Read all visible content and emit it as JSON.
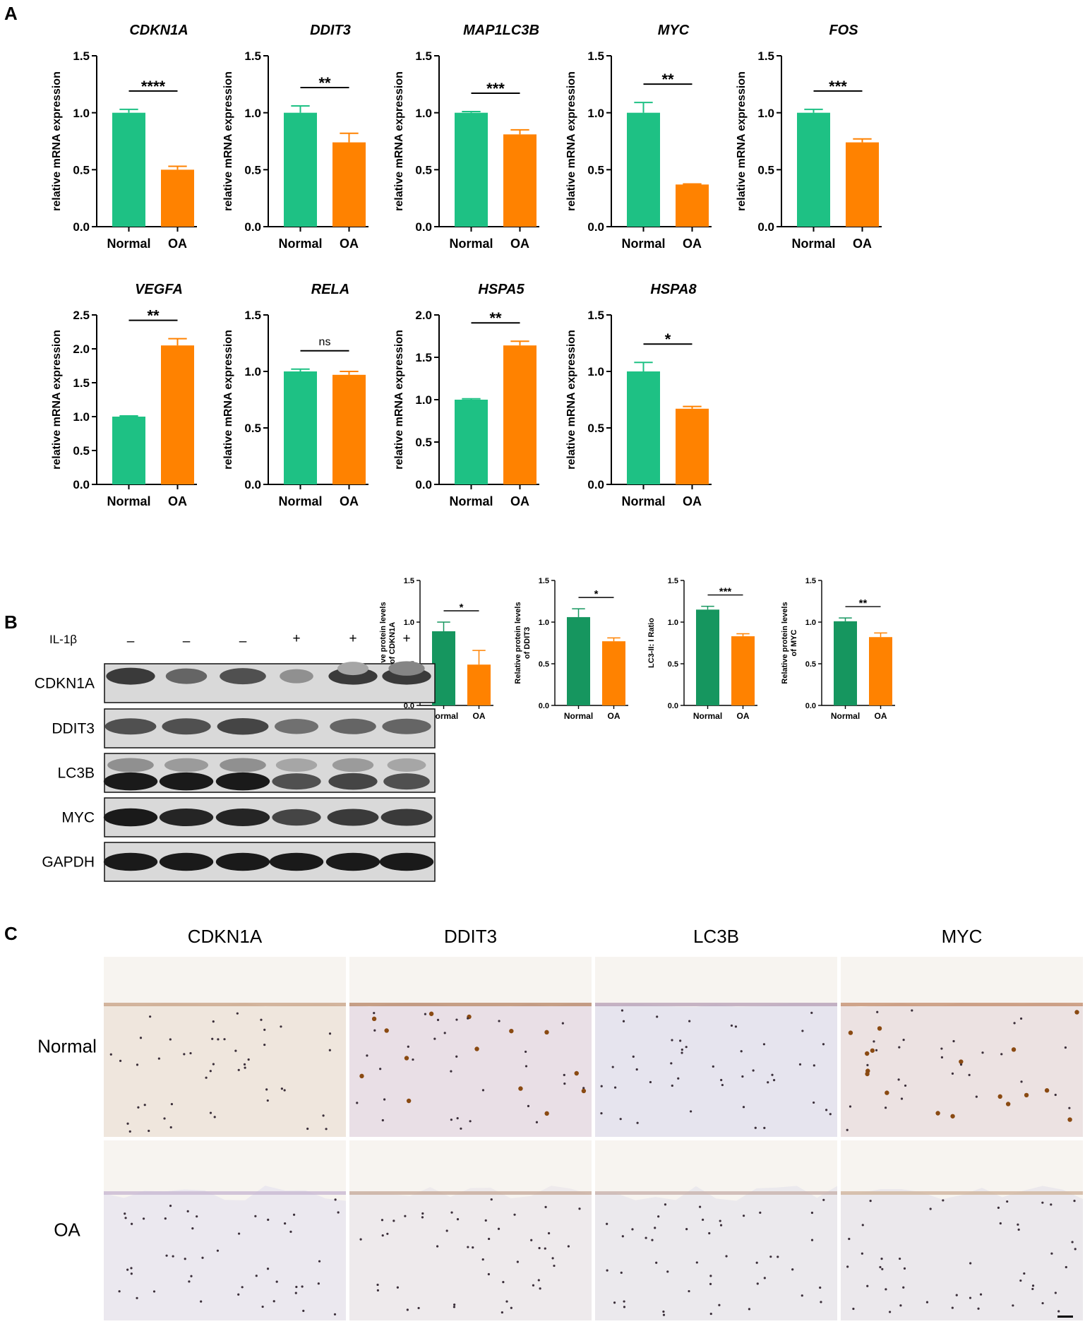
{
  "panel_labels": {
    "a": "A",
    "b": "B",
    "c": "C"
  },
  "colors": {
    "normal": "#1ec184",
    "oa": "#ff8200",
    "normal_b": "#16965f",
    "axis": "#000000"
  },
  "chart_data": [
    {
      "type": "bar",
      "title": "CDKN1A",
      "ylabel": "relative mRNA expression",
      "categories": [
        "Normal",
        "OA"
      ],
      "values": [
        1.0,
        0.5
      ],
      "errors": [
        0.03,
        0.03
      ],
      "ylim": [
        0,
        1.5
      ],
      "yticks": [
        "0.0",
        "0.5",
        "1.0",
        "1.5"
      ],
      "significance": "****"
    },
    {
      "type": "bar",
      "title": "DDIT3",
      "ylabel": "relative mRNA expression",
      "categories": [
        "Normal",
        "OA"
      ],
      "values": [
        1.0,
        0.74
      ],
      "errors": [
        0.06,
        0.08
      ],
      "ylim": [
        0,
        1.5
      ],
      "yticks": [
        "0.0",
        "0.5",
        "1.0",
        "1.5"
      ],
      "significance": "**"
    },
    {
      "type": "bar",
      "title": "MAP1LC3B",
      "ylabel": "relative mRNA expression",
      "categories": [
        "Normal",
        "OA"
      ],
      "values": [
        1.0,
        0.81
      ],
      "errors": [
        0.01,
        0.04
      ],
      "ylim": [
        0,
        1.5
      ],
      "yticks": [
        "0.0",
        "0.5",
        "1.0",
        "1.5"
      ],
      "significance": "***"
    },
    {
      "type": "bar",
      "title": "MYC",
      "ylabel": "relative mRNA expression",
      "categories": [
        "Normal",
        "OA"
      ],
      "values": [
        1.0,
        0.37
      ],
      "errors": [
        0.09,
        0.005
      ],
      "ylim": [
        0,
        1.5
      ],
      "yticks": [
        "0.0",
        "0.5",
        "1.0",
        "1.5"
      ],
      "significance": "**"
    },
    {
      "type": "bar",
      "title": "FOS",
      "ylabel": "relative mRNA expression",
      "categories": [
        "Normal",
        "OA"
      ],
      "values": [
        1.0,
        0.74
      ],
      "errors": [
        0.03,
        0.03
      ],
      "ylim": [
        0,
        1.5
      ],
      "yticks": [
        "0.0",
        "0.5",
        "1.0",
        "1.5"
      ],
      "significance": "***"
    },
    {
      "type": "bar",
      "title": "VEGFA",
      "ylabel": "relative mRNA expression",
      "categories": [
        "Normal",
        "OA"
      ],
      "values": [
        1.0,
        2.05
      ],
      "errors": [
        0.01,
        0.1
      ],
      "ylim": [
        0,
        2.5
      ],
      "yticks": [
        "0.0",
        "0.5",
        "1.0",
        "1.5",
        "2.0",
        "2.5"
      ],
      "significance": "**"
    },
    {
      "type": "bar",
      "title": "RELA",
      "ylabel": "relative mRNA expression",
      "categories": [
        "Normal",
        "OA"
      ],
      "values": [
        1.0,
        0.97
      ],
      "errors": [
        0.02,
        0.03
      ],
      "ylim": [
        0,
        1.5
      ],
      "yticks": [
        "0.0",
        "0.5",
        "1.0",
        "1.5"
      ],
      "significance": "ns"
    },
    {
      "type": "bar",
      "title": "HSPA5",
      "ylabel": "relative mRNA expression",
      "categories": [
        "Normal",
        "OA"
      ],
      "values": [
        1.0,
        1.64
      ],
      "errors": [
        0.01,
        0.05
      ],
      "ylim": [
        0,
        2.0
      ],
      "yticks": [
        "0.0",
        "0.5",
        "1.0",
        "1.5",
        "2.0"
      ],
      "significance": "**"
    },
    {
      "type": "bar",
      "title": "HSPA8",
      "ylabel": "relative mRNA expression",
      "categories": [
        "Normal",
        "OA"
      ],
      "values": [
        1.0,
        0.67
      ],
      "errors": [
        0.08,
        0.02
      ],
      "ylim": [
        0,
        1.5
      ],
      "yticks": [
        "0.0",
        "0.5",
        "1.0",
        "1.5"
      ],
      "significance": "*"
    },
    {
      "type": "bar",
      "title": "",
      "ylabel": "Relative protein levels of CDKN1A",
      "categories": [
        "Normal",
        "OA"
      ],
      "values": [
        0.89,
        0.49
      ],
      "errors": [
        0.11,
        0.17
      ],
      "ylim": [
        0,
        1.5
      ],
      "yticks": [
        "0.0",
        "0.5",
        "1.0",
        "1.5"
      ],
      "significance": "*"
    },
    {
      "type": "bar",
      "title": "",
      "ylabel": "Relative protein levels of DDIT3",
      "categories": [
        "Normal",
        "OA"
      ],
      "values": [
        1.06,
        0.77
      ],
      "errors": [
        0.1,
        0.04
      ],
      "ylim": [
        0,
        1.5
      ],
      "yticks": [
        "0.0",
        "0.5",
        "1.0",
        "1.5"
      ],
      "significance": "*"
    },
    {
      "type": "bar",
      "title": "",
      "ylabel": "LC3-II: I Ratio",
      "categories": [
        "Normal",
        "OA"
      ],
      "values": [
        1.15,
        0.83
      ],
      "errors": [
        0.04,
        0.03
      ],
      "ylim": [
        0,
        1.5
      ],
      "yticks": [
        "0.0",
        "0.5",
        "1.0",
        "1.5"
      ],
      "significance": "***"
    },
    {
      "type": "bar",
      "title": "",
      "ylabel": "Relative protein levels of MYC",
      "categories": [
        "Normal",
        "OA"
      ],
      "values": [
        1.01,
        0.82
      ],
      "errors": [
        0.04,
        0.05
      ],
      "ylim": [
        0,
        1.5
      ],
      "yticks": [
        "0.0",
        "0.5",
        "1.0",
        "1.5"
      ],
      "significance": "**"
    }
  ],
  "western_blot": {
    "treatment_label": "IL-1β",
    "lanes": [
      "–",
      "–",
      "–",
      "+",
      "+",
      "+"
    ],
    "bands": [
      "CDKN1A",
      "DDIT3",
      "LC3B",
      "MYC",
      "GAPDH"
    ]
  },
  "ihc": {
    "columns": [
      "CDKN1A",
      "DDIT3",
      "LC3B",
      "MYC"
    ],
    "rows": [
      "Normal",
      "OA"
    ]
  }
}
